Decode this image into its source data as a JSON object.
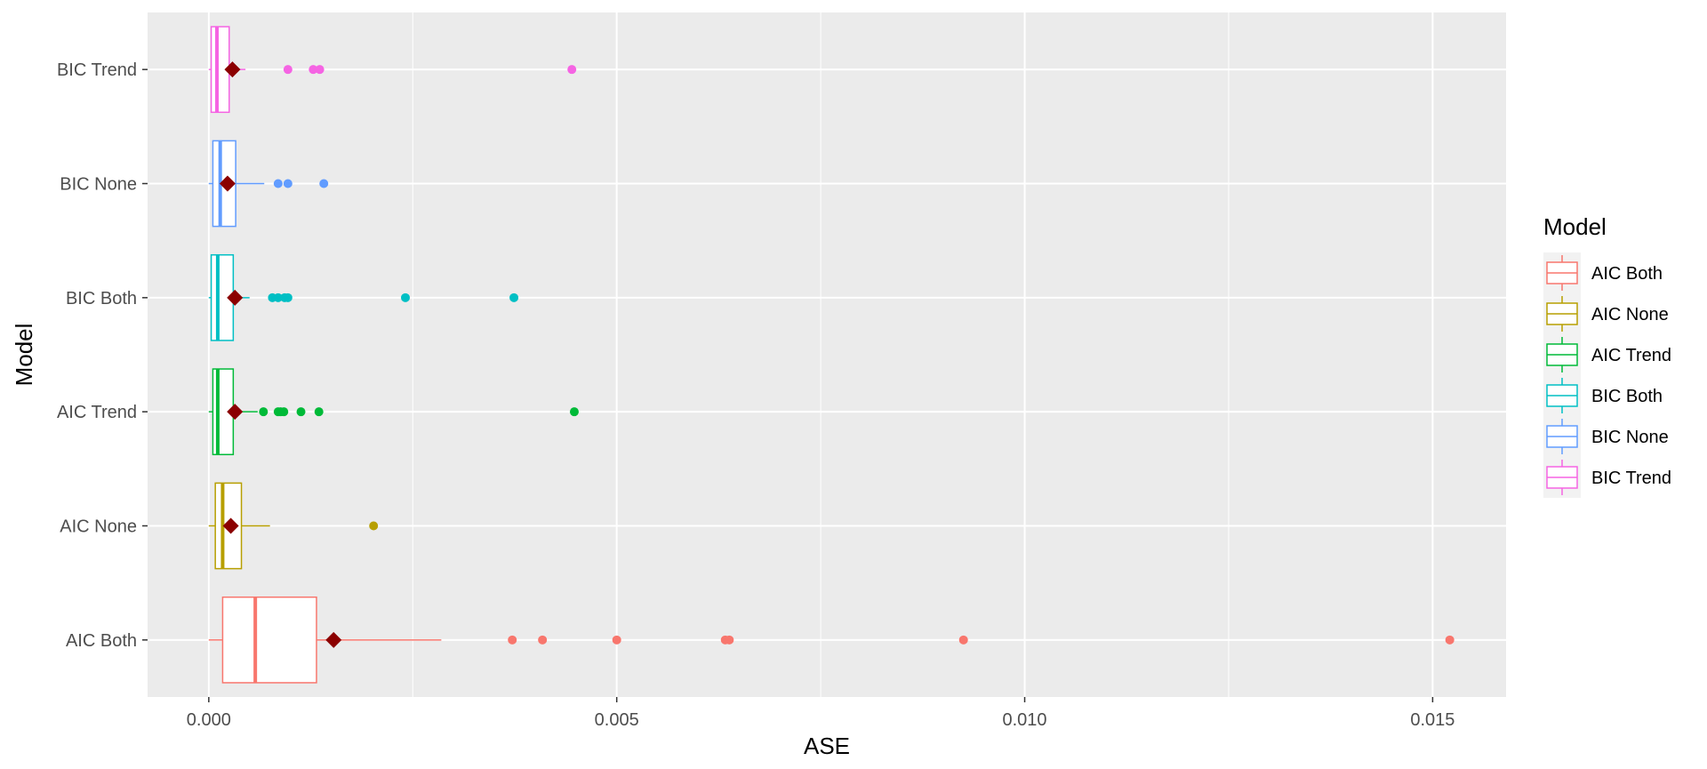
{
  "chart_data": {
    "type": "boxplot",
    "orientation": "horizontal",
    "xlabel": "ASE",
    "ylabel": "Model",
    "xlim": [
      -0.00075,
      0.0159
    ],
    "x_ticks": [
      0.0,
      0.005,
      0.01,
      0.015
    ],
    "x_tick_labels": [
      "0.000",
      "0.005",
      "0.010",
      "0.015"
    ],
    "grid": true,
    "panel_background": "#ebebeb",
    "mean_marker_color": "#8b0000",
    "legend": {
      "title": "Model",
      "position": "right",
      "entries": [
        "AIC Both",
        "AIC None",
        "AIC Trend",
        "BIC Both",
        "BIC None",
        "BIC Trend"
      ]
    },
    "series": [
      {
        "name": "AIC Both",
        "color": "#f8766d",
        "whisker_low": 0.0,
        "q1": 0.00017,
        "median": 0.00057,
        "q3": 0.00132,
        "whisker_high": 0.00285,
        "mean": 0.00153,
        "outliers": [
          0.00372,
          0.00409,
          0.005,
          0.00633,
          0.00638,
          0.00925,
          0.01521
        ]
      },
      {
        "name": "AIC None",
        "color": "#b79f00",
        "whisker_low": 0.0,
        "q1": 8e-05,
        "median": 0.00017,
        "q3": 0.0004,
        "whisker_high": 0.00075,
        "mean": 0.00027,
        "outliers": [
          0.00202
        ]
      },
      {
        "name": "AIC Trend",
        "color": "#00ba38",
        "whisker_low": 0.0,
        "q1": 5e-05,
        "median": 0.00011,
        "q3": 0.0003,
        "whisker_high": 0.0006,
        "mean": 0.00032,
        "outliers": [
          0.00067,
          0.00085,
          0.00088,
          0.00092,
          0.00113,
          0.00135,
          0.00448
        ]
      },
      {
        "name": "BIC Both",
        "color": "#00bfc4",
        "whisker_low": 0.0,
        "q1": 3e-05,
        "median": 0.00011,
        "q3": 0.0003,
        "whisker_high": 0.0005,
        "mean": 0.00032,
        "outliers": [
          0.00078,
          0.00085,
          0.00093,
          0.00097,
          0.00241,
          0.00374
        ]
      },
      {
        "name": "BIC None",
        "color": "#619cff",
        "whisker_low": 0.0,
        "q1": 5e-05,
        "median": 0.00014,
        "q3": 0.00033,
        "whisker_high": 0.00068,
        "mean": 0.00023,
        "outliers": [
          0.00085,
          0.00097,
          0.00141
        ]
      },
      {
        "name": "BIC Trend",
        "color": "#f564e3",
        "whisker_low": 0.0,
        "q1": 3e-05,
        "median": 0.0001,
        "q3": 0.00025,
        "whisker_high": 0.00045,
        "mean": 0.00029,
        "outliers": [
          0.00097,
          0.00128,
          0.00136,
          0.00445
        ]
      }
    ]
  }
}
